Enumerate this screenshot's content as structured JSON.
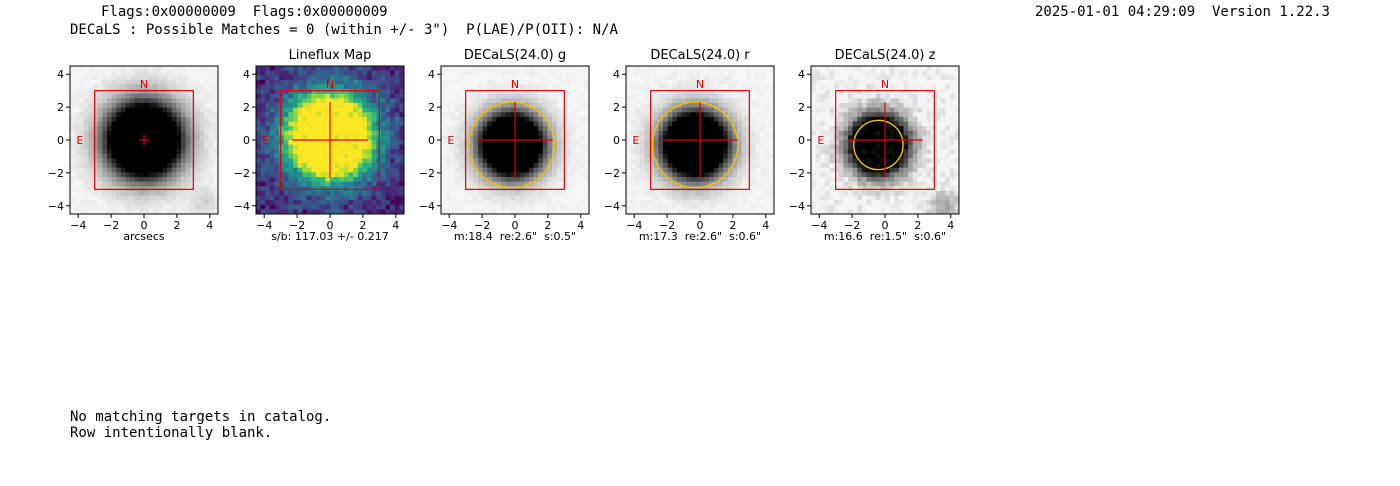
{
  "header": {
    "flags_line": "Flags:0x00000009  Flags:0x00000009",
    "matches_line": "DECaLS : Possible Matches = 0 (within +/- 3\")  P(LAE)/P(OII): N/A",
    "datetime_version": "2025-01-01 04:29:09  Version 1.22.3"
  },
  "footer": {
    "line1": "No matching targets in catalog.",
    "line2": "Row intentionally blank."
  },
  "colors": {
    "box": "#e00000",
    "ellipse": "#f2c200",
    "compass": "#e00000"
  },
  "chart_data": [
    {
      "type": "heatmap",
      "title": "",
      "xlabel": "arcsecs",
      "ylabel": "",
      "xlim": [
        -4.5,
        4.5
      ],
      "ylim": [
        -4.5,
        4.5
      ],
      "xticks": [
        "−4",
        "−2",
        "0",
        "2",
        "4"
      ],
      "yticks": [
        "4",
        "2",
        "0",
        "−2",
        "−4"
      ],
      "compass": {
        "north": "N",
        "east": "E"
      },
      "colormap": "gray_r",
      "source": {
        "x": 0,
        "y": 0,
        "sigma": 1.5,
        "peak": 1.0
      },
      "secondary": {
        "x": 3.7,
        "y": -3.8,
        "sigma": 0.6,
        "peak": 0.15
      },
      "aperture_box": {
        "x": [
          -3,
          3
        ],
        "y": [
          -3,
          3
        ]
      },
      "crosshair": {
        "x": 0,
        "y": 0,
        "half_length": 0.3
      },
      "ellipse": null,
      "caption": ""
    },
    {
      "type": "heatmap",
      "title": "Lineflux Map",
      "xlabel": "",
      "ylabel": "",
      "xlim": [
        -4.5,
        4.5
      ],
      "ylim": [
        -4.5,
        4.5
      ],
      "xticks": [
        "−4",
        "−2",
        "0",
        "2",
        "4"
      ],
      "yticks": [
        "4",
        "2",
        "0",
        "−2",
        "−4"
      ],
      "compass": {
        "north": "N",
        "east": "E"
      },
      "colormap": "viridis",
      "source": {
        "x": 0,
        "y": 0.2,
        "sigma": 1.7,
        "peak": 1.0
      },
      "aperture_box": {
        "x": [
          -3,
          3
        ],
        "y": [
          -3,
          3
        ]
      },
      "crosshair": {
        "x": 0,
        "y": 0,
        "half_length": 2.3
      },
      "ellipse": null,
      "caption": "s/b: 117.03 +/- 0.217"
    },
    {
      "type": "heatmap",
      "title": "DECaLS(24.0) g",
      "xlabel": "",
      "ylabel": "",
      "xlim": [
        -4.5,
        4.5
      ],
      "ylim": [
        -4.5,
        4.5
      ],
      "xticks": [
        "−4",
        "−2",
        "0",
        "2",
        "4"
      ],
      "yticks": [
        "4",
        "2",
        "0",
        "−2",
        "−4"
      ],
      "compass": {
        "north": "N",
        "east": "E"
      },
      "colormap": "gray_r",
      "source": {
        "x": -0.2,
        "y": -0.3,
        "sigma": 1.25,
        "peak": 1.0
      },
      "aperture_box": {
        "x": [
          -3,
          3
        ],
        "y": [
          -3,
          3
        ]
      },
      "crosshair": {
        "x": 0,
        "y": 0,
        "half_length": 2.3
      },
      "ellipse": {
        "x": -0.2,
        "y": -0.3,
        "rx": 2.6,
        "ry": 2.6
      },
      "caption": "m:18.4  re:2.6\"  s:0.5\""
    },
    {
      "type": "heatmap",
      "title": "DECaLS(24.0) r",
      "xlabel": "",
      "ylabel": "",
      "xlim": [
        -4.5,
        4.5
      ],
      "ylim": [
        -4.5,
        4.5
      ],
      "xticks": [
        "−4",
        "−2",
        "0",
        "2",
        "4"
      ],
      "yticks": [
        "4",
        "2",
        "0",
        "−2",
        "−4"
      ],
      "compass": {
        "north": "N",
        "east": "E"
      },
      "colormap": "gray_r",
      "source": {
        "x": -0.3,
        "y": -0.3,
        "sigma": 1.3,
        "peak": 1.0
      },
      "aperture_box": {
        "x": [
          -3,
          3
        ],
        "y": [
          -3,
          3
        ]
      },
      "crosshair": {
        "x": 0,
        "y": 0,
        "half_length": 2.3
      },
      "ellipse": {
        "x": -0.3,
        "y": -0.3,
        "rx": 2.6,
        "ry": 2.6
      },
      "caption": "m:17.3  re:2.6\"  s:0.6\""
    },
    {
      "type": "heatmap",
      "title": "DECaLS(24.0) z",
      "xlabel": "",
      "ylabel": "",
      "xlim": [
        -4.5,
        4.5
      ],
      "ylim": [
        -4.5,
        4.5
      ],
      "xticks": [
        "−4",
        "−2",
        "0",
        "2",
        "4"
      ],
      "yticks": [
        "4",
        "2",
        "0",
        "−2",
        "−4"
      ],
      "compass": {
        "north": "N",
        "east": "E"
      },
      "colormap": "gray_r",
      "source": {
        "x": -0.4,
        "y": -0.3,
        "sigma": 1.15,
        "peak": 1.0
      },
      "secondary": {
        "x": 3.6,
        "y": -3.9,
        "sigma": 0.6,
        "peak": 0.35
      },
      "noise": 0.09,
      "aperture_box": {
        "x": [
          -3,
          3
        ],
        "y": [
          -3,
          3
        ]
      },
      "crosshair": {
        "x": 0,
        "y": 0,
        "half_length": 2.3
      },
      "ellipse": {
        "x": -0.4,
        "y": -0.3,
        "rx": 1.5,
        "ry": 1.5
      },
      "caption": "m:16.6  re:1.5\"  s:0.6\""
    }
  ]
}
